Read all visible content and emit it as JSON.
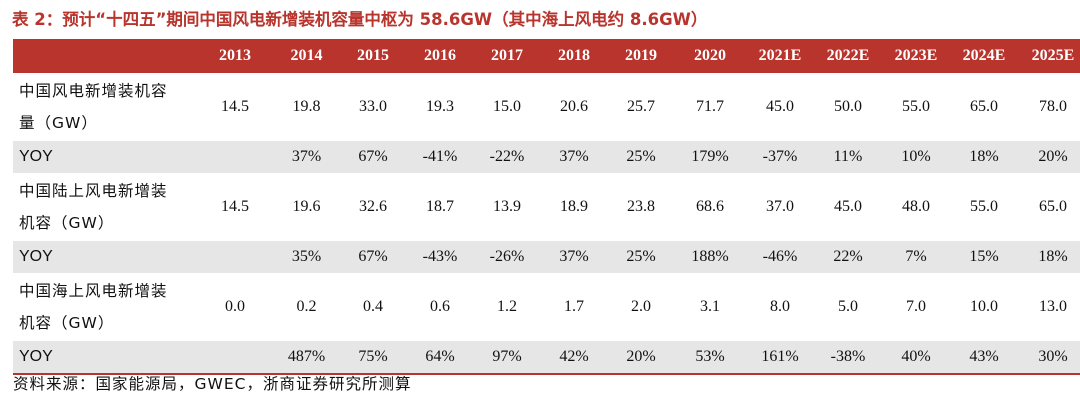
{
  "title": "表 2：预计“十四五”期间中国风电新增装机容量中枢为 58.6GW（其中海上风电约 8.6GW）",
  "table": {
    "headers": [
      "",
      "2013",
      "2014",
      "2015",
      "2016",
      "2017",
      "2018",
      "2019",
      "2020",
      "2021E",
      "2022E",
      "2023E",
      "2024E",
      "2025E"
    ],
    "rows": [
      {
        "kind": "value",
        "label_lines": [
          "中国风电新增装机容",
          "量（GW）"
        ],
        "cells": [
          "14.5",
          "19.8",
          "33.0",
          "19.3",
          "15.0",
          "20.6",
          "25.7",
          "71.7",
          "45.0",
          "50.0",
          "55.0",
          "65.0",
          "78.0"
        ]
      },
      {
        "kind": "yoy",
        "label_lines": [
          "YOY"
        ],
        "cells": [
          "",
          "37%",
          "67%",
          "-41%",
          "-22%",
          "37%",
          "25%",
          "179%",
          "-37%",
          "11%",
          "10%",
          "18%",
          "20%"
        ]
      },
      {
        "kind": "value",
        "label_lines": [
          "中国陆上风电新增装",
          "机容（GW）"
        ],
        "cells": [
          "14.5",
          "19.6",
          "32.6",
          "18.7",
          "13.9",
          "18.9",
          "23.8",
          "68.6",
          "37.0",
          "45.0",
          "48.0",
          "55.0",
          "65.0"
        ]
      },
      {
        "kind": "yoy",
        "label_lines": [
          "YOY"
        ],
        "cells": [
          "",
          "35%",
          "67%",
          "-43%",
          "-26%",
          "37%",
          "25%",
          "188%",
          "-46%",
          "22%",
          "7%",
          "15%",
          "18%"
        ]
      },
      {
        "kind": "value",
        "label_lines": [
          "中国海上风电新增装",
          "机容（GW）"
        ],
        "cells": [
          "0.0",
          "0.2",
          "0.4",
          "0.6",
          "1.2",
          "1.7",
          "2.0",
          "3.1",
          "8.0",
          "5.0",
          "7.0",
          "10.0",
          "13.0"
        ]
      },
      {
        "kind": "yoy",
        "label_lines": [
          "YOY"
        ],
        "cells": [
          "",
          "487%",
          "75%",
          "64%",
          "97%",
          "42%",
          "20%",
          "53%",
          "161%",
          "-38%",
          "40%",
          "43%",
          "30%"
        ]
      }
    ]
  },
  "source": "资料来源：国家能源局，GWEC，浙商证券研究所测算",
  "colors": {
    "accent": "#b8342c",
    "yoy_row_bg": "#e6e6e6"
  }
}
